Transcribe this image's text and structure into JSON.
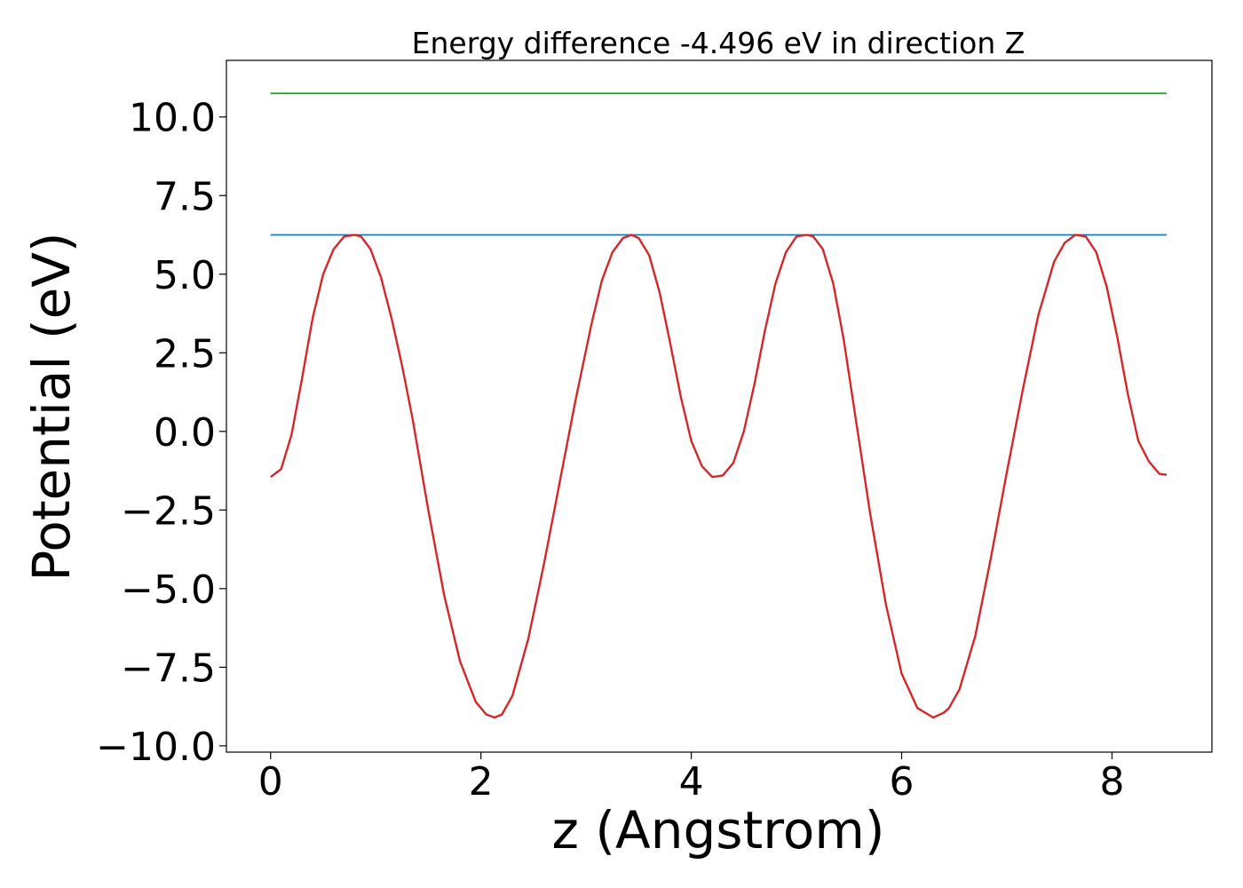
{
  "chart_data": {
    "type": "line",
    "title": "Energy difference -4.496 eV in direction Z",
    "xlabel": "z (Angstrom)",
    "ylabel": "Potential (eV)",
    "xlim": [
      -0.42,
      8.95
    ],
    "ylim": [
      -10.2,
      11.8
    ],
    "xticks": [
      0,
      2,
      4,
      6,
      8
    ],
    "xtick_labels": [
      "0",
      "2",
      "4",
      "6",
      "8"
    ],
    "yticks": [
      -10,
      -7.5,
      -5,
      -2.5,
      0,
      2.5,
      5,
      7.5,
      10
    ],
    "ytick_labels": [
      "−10.0",
      "−7.5",
      "−5.0",
      "−2.5",
      "0.0",
      "2.5",
      "5.0",
      "7.5",
      "10.0"
    ],
    "grid": false,
    "series": [
      {
        "color": "#2ca02c",
        "x": [
          0,
          8.52
        ],
        "y": [
          10.75,
          10.75
        ]
      },
      {
        "color": "#1f77b4",
        "x": [
          0,
          8.52
        ],
        "y": [
          6.25,
          6.25
        ]
      },
      {
        "color": "#d62728",
        "x": [
          0,
          0.1,
          0.2,
          0.3,
          0.4,
          0.5,
          0.6,
          0.7,
          0.8,
          0.86,
          0.95,
          1.05,
          1.15,
          1.25,
          1.35,
          1.5,
          1.65,
          1.8,
          1.95,
          2.05,
          2.13,
          2.2,
          2.3,
          2.45,
          2.6,
          2.75,
          2.9,
          3.05,
          3.15,
          3.25,
          3.35,
          3.43,
          3.5,
          3.6,
          3.7,
          3.8,
          3.9,
          4.0,
          4.1,
          4.2,
          4.3,
          4.4,
          4.5,
          4.6,
          4.7,
          4.8,
          4.9,
          5.0,
          5.1,
          5.16,
          5.25,
          5.35,
          5.45,
          5.55,
          5.7,
          5.85,
          6.0,
          6.15,
          6.3,
          6.4,
          6.45,
          6.55,
          6.7,
          6.85,
          7.0,
          7.15,
          7.3,
          7.45,
          7.55,
          7.65,
          7.75,
          7.85,
          7.95,
          8.05,
          8.15,
          8.25,
          8.35,
          8.45,
          8.52
        ],
        "y": [
          -1.45,
          -1.2,
          -0.1,
          1.7,
          3.6,
          5.0,
          5.8,
          6.2,
          6.25,
          6.2,
          5.8,
          4.9,
          3.6,
          2.1,
          0.4,
          -2.5,
          -5.2,
          -7.3,
          -8.6,
          -9.0,
          -9.1,
          -9.0,
          -8.4,
          -6.6,
          -4.2,
          -1.6,
          1.0,
          3.4,
          4.8,
          5.7,
          6.15,
          6.25,
          6.15,
          5.6,
          4.4,
          2.8,
          1.1,
          -0.3,
          -1.1,
          -1.45,
          -1.4,
          -1.0,
          0.0,
          1.5,
          3.2,
          4.7,
          5.7,
          6.2,
          6.25,
          6.2,
          5.8,
          4.7,
          2.9,
          0.7,
          -2.6,
          -5.5,
          -7.7,
          -8.8,
          -9.1,
          -8.95,
          -8.8,
          -8.2,
          -6.5,
          -4.0,
          -1.3,
          1.3,
          3.7,
          5.4,
          6.0,
          6.25,
          6.2,
          5.7,
          4.6,
          3.0,
          1.2,
          -0.3,
          -0.95,
          -1.35,
          -1.38
        ]
      }
    ]
  }
}
